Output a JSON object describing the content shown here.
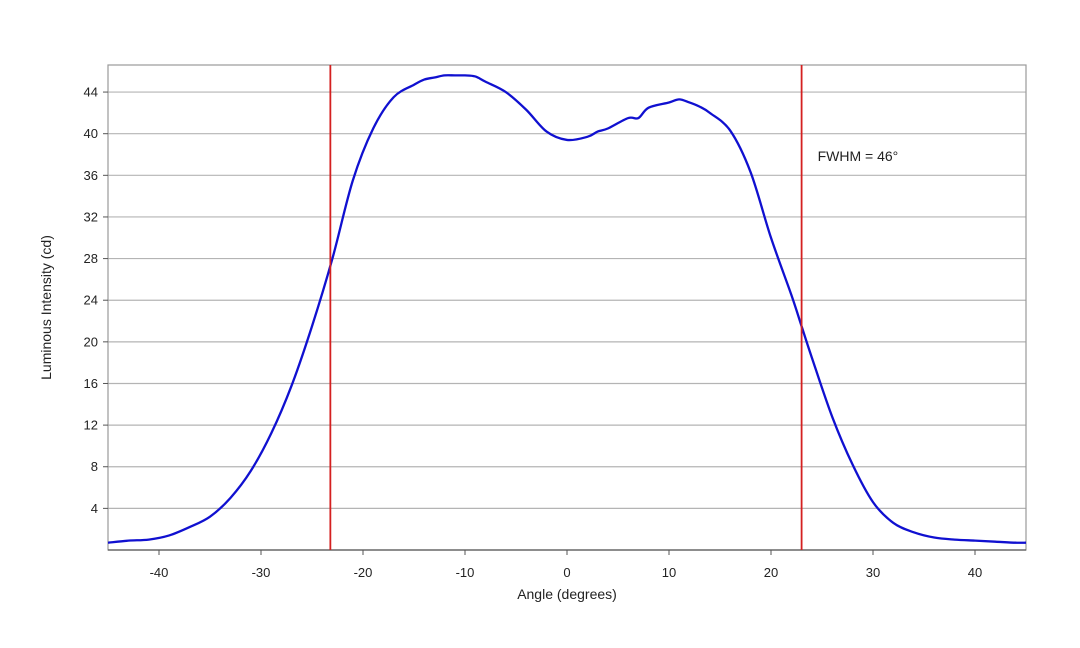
{
  "chart_data": {
    "type": "line",
    "xlabel": "Angle (degrees)",
    "ylabel": "Luminous Intensity (cd)",
    "xlim": [
      -45,
      45
    ],
    "ylim": [
      0,
      46.6
    ],
    "xticks": [
      -40,
      -30,
      -20,
      -10,
      0,
      10,
      20,
      30,
      40
    ],
    "yticks": [
      4,
      8,
      12,
      16,
      20,
      24,
      28,
      32,
      36,
      40,
      44
    ],
    "grid": "horizontal",
    "colors": {
      "series": "#1010d0",
      "markers": "#d42020",
      "grid": "#b4b4b4",
      "frame": "#9a9a9a"
    },
    "series": [
      {
        "x": [
          -45,
          -43,
          -41,
          -39,
          -37,
          -35,
          -33,
          -31,
          -29,
          -27,
          -25,
          -23,
          -21,
          -19,
          -17,
          -15,
          -14,
          -13,
          -12,
          -11,
          -10,
          -9,
          -8,
          -6,
          -4,
          -2,
          0,
          2,
          3,
          4,
          6,
          7,
          8,
          10,
          11,
          12,
          13,
          14,
          16,
          18,
          20,
          22,
          23,
          24,
          26,
          28,
          30,
          32,
          34,
          36,
          38,
          40,
          42,
          44,
          45
        ],
        "y": [
          0.7,
          0.9,
          1.0,
          1.4,
          2.2,
          3.2,
          5.0,
          7.6,
          11.2,
          15.8,
          21.5,
          28.0,
          35.5,
          40.5,
          43.5,
          44.7,
          45.2,
          45.4,
          45.6,
          45.6,
          45.6,
          45.5,
          45.0,
          44.0,
          42.3,
          40.2,
          39.4,
          39.7,
          40.2,
          40.5,
          41.5,
          41.5,
          42.5,
          43.0,
          43.3,
          43.0,
          42.6,
          42.0,
          40.3,
          36.3,
          30.0,
          24.5,
          21.5,
          18.5,
          12.8,
          8.2,
          4.6,
          2.6,
          1.7,
          1.2,
          1.0,
          0.9,
          0.8,
          0.7,
          0.7
        ]
      }
    ],
    "markers": [
      {
        "x": -23.2
      },
      {
        "x": 23.0
      }
    ],
    "annotation": "FWHM = 46°"
  }
}
